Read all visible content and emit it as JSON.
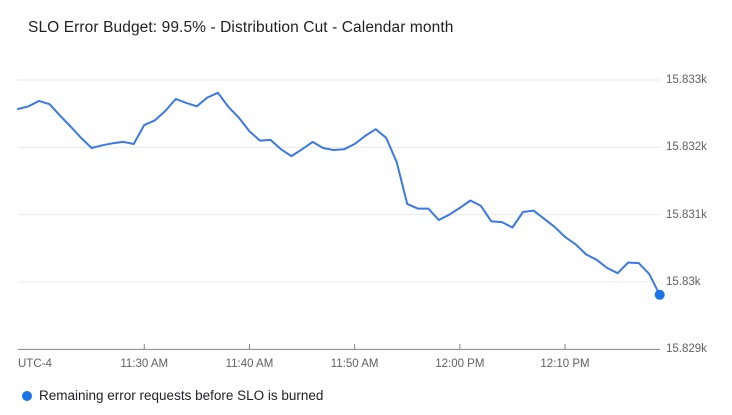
{
  "title": "SLO Error Budget: 99.5% - Distribution Cut - Calendar month",
  "legend": {
    "label": "Remaining error requests before SLO is burned",
    "marker_icon": "circle-icon",
    "marker_color": "#1a73e8"
  },
  "colors": {
    "line": "#3b78e8",
    "endpoint_dot": "#1a73e8",
    "grid": "#e9e9e9",
    "axis": "#80868b",
    "axis_text": "#616161",
    "title_text": "#1f1f1f",
    "background": "#ffffff"
  },
  "chart_data": {
    "type": "line",
    "title": "SLO Error Budget: 99.5% - Distribution Cut - Calendar month",
    "grid": true,
    "legend_position": "bottom-left",
    "x_axis": {
      "timezone_label": "UTC-4",
      "ticks": [
        {
          "label": "11:30 AM",
          "time": "11:30"
        },
        {
          "label": "11:40 AM",
          "time": "11:40"
        },
        {
          "label": "11:50 AM",
          "time": "11:50"
        },
        {
          "label": "12:00 PM",
          "time": "12:00"
        },
        {
          "label": "12:10 PM",
          "time": "12:10"
        }
      ],
      "range": [
        "11:18",
        "12:19"
      ]
    },
    "y_axis": {
      "ticks": [
        {
          "label": "15.833k",
          "value": 15833
        },
        {
          "label": "15.832k",
          "value": 15832
        },
        {
          "label": "15.831k",
          "value": 15831
        },
        {
          "label": "15.83k",
          "value": 15830
        },
        {
          "label": "15.829k",
          "value": 15829
        }
      ],
      "range": [
        15829,
        15833
      ]
    },
    "series": [
      {
        "name": "Remaining error requests before SLO is burned",
        "color": "#3b78e8",
        "end_marker": true,
        "points": [
          {
            "t": "11:18",
            "v": 15832.57
          },
          {
            "t": "11:19",
            "v": 15832.61
          },
          {
            "t": "11:20",
            "v": 15832.69
          },
          {
            "t": "11:21",
            "v": 15832.64
          },
          {
            "t": "11:22",
            "v": 15832.47
          },
          {
            "t": "11:23",
            "v": 15832.31
          },
          {
            "t": "11:24",
            "v": 15832.14
          },
          {
            "t": "11:25",
            "v": 15831.99
          },
          {
            "t": "11:26",
            "v": 15832.03
          },
          {
            "t": "11:27",
            "v": 15832.06
          },
          {
            "t": "11:28",
            "v": 15832.08
          },
          {
            "t": "11:29",
            "v": 15832.05
          },
          {
            "t": "11:30",
            "v": 15832.33
          },
          {
            "t": "11:31",
            "v": 15832.4
          },
          {
            "t": "11:32",
            "v": 15832.54
          },
          {
            "t": "11:33",
            "v": 15832.72
          },
          {
            "t": "11:34",
            "v": 15832.66
          },
          {
            "t": "11:35",
            "v": 15832.61
          },
          {
            "t": "11:36",
            "v": 15832.74
          },
          {
            "t": "11:37",
            "v": 15832.81
          },
          {
            "t": "11:38",
            "v": 15832.6
          },
          {
            "t": "11:39",
            "v": 15832.44
          },
          {
            "t": "11:40",
            "v": 15832.24
          },
          {
            "t": "11:41",
            "v": 15832.1
          },
          {
            "t": "11:42",
            "v": 15832.11
          },
          {
            "t": "11:43",
            "v": 15831.97
          },
          {
            "t": "11:44",
            "v": 15831.87
          },
          {
            "t": "11:45",
            "v": 15831.97
          },
          {
            "t": "11:46",
            "v": 15832.08
          },
          {
            "t": "11:47",
            "v": 15831.99
          },
          {
            "t": "11:48",
            "v": 15831.96
          },
          {
            "t": "11:49",
            "v": 15831.97
          },
          {
            "t": "11:50",
            "v": 15832.05
          },
          {
            "t": "11:51",
            "v": 15832.17
          },
          {
            "t": "11:52",
            "v": 15832.27
          },
          {
            "t": "11:53",
            "v": 15832.14
          },
          {
            "t": "11:54",
            "v": 15831.78
          },
          {
            "t": "11:55",
            "v": 15831.16
          },
          {
            "t": "11:56",
            "v": 15831.09
          },
          {
            "t": "11:57",
            "v": 15831.09
          },
          {
            "t": "11:58",
            "v": 15830.92
          },
          {
            "t": "11:59",
            "v": 15831.0
          },
          {
            "t": "12:00",
            "v": 15831.1
          },
          {
            "t": "12:01",
            "v": 15831.21
          },
          {
            "t": "12:02",
            "v": 15831.13
          },
          {
            "t": "12:03",
            "v": 15830.9
          },
          {
            "t": "12:04",
            "v": 15830.89
          },
          {
            "t": "12:05",
            "v": 15830.81
          },
          {
            "t": "12:06",
            "v": 15831.04
          },
          {
            "t": "12:07",
            "v": 15831.06
          },
          {
            "t": "12:08",
            "v": 15830.94
          },
          {
            "t": "12:09",
            "v": 15830.82
          },
          {
            "t": "12:10",
            "v": 15830.67
          },
          {
            "t": "12:11",
            "v": 15830.56
          },
          {
            "t": "12:12",
            "v": 15830.41
          },
          {
            "t": "12:13",
            "v": 15830.33
          },
          {
            "t": "12:14",
            "v": 15830.21
          },
          {
            "t": "12:15",
            "v": 15830.13
          },
          {
            "t": "12:16",
            "v": 15830.29
          },
          {
            "t": "12:17",
            "v": 15830.28
          },
          {
            "t": "12:18",
            "v": 15830.12
          },
          {
            "t": "12:19",
            "v": 15829.81
          }
        ]
      }
    ]
  }
}
